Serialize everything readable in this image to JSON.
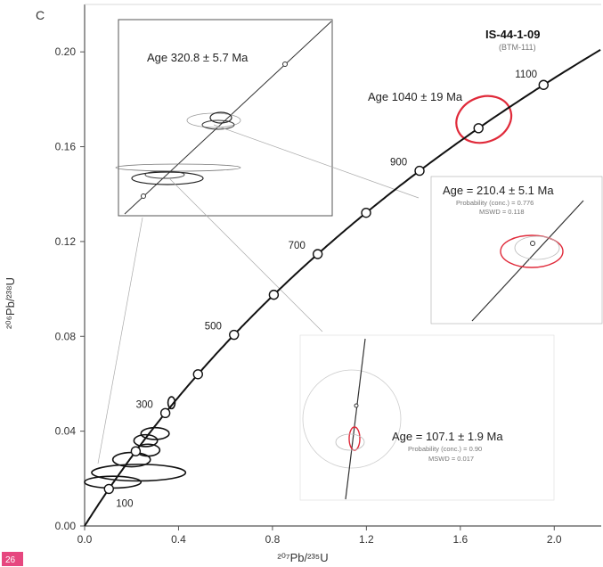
{
  "chart_data": {
    "type": "scatter",
    "panel_label": "C",
    "title": "IS-44-1-09",
    "subtitle": "(BTM-111)",
    "xlabel": "²⁰⁷Pb/²³⁵U",
    "ylabel": "²⁰⁶Pb/²³⁸U",
    "xlim": [
      0,
      2.2
    ],
    "ylim": [
      0,
      0.22
    ],
    "x_ticks": [
      0.0,
      0.4,
      0.8,
      1.2,
      1.6,
      2.0
    ],
    "x_tick_labels": [
      "0.0",
      "0.4",
      "0.8",
      "1.2",
      "1.6",
      "2.0"
    ],
    "y_ticks": [
      0.0,
      0.04,
      0.08,
      0.12,
      0.16,
      0.2
    ],
    "y_tick_labels": [
      "0.00",
      "0.04",
      "0.08",
      "0.12",
      "0.16",
      "0.20"
    ],
    "concordia_labels_ma": [
      100,
      300,
      500,
      700,
      900,
      1100
    ],
    "concordia_label_text": [
      "100",
      "300",
      "500",
      "700",
      "900",
      "1100"
    ],
    "concordia_markers_ma": [
      100,
      200,
      300,
      400,
      500,
      600,
      700,
      800,
      900,
      1000,
      1100
    ],
    "ellipses": [
      {
        "x": 0.12,
        "y": 0.0185,
        "rx": 0.12,
        "ry": 0.0025,
        "color": "black"
      },
      {
        "x": 0.23,
        "y": 0.0225,
        "rx": 0.2,
        "ry": 0.0035,
        "color": "black"
      },
      {
        "x": 0.2,
        "y": 0.028,
        "rx": 0.08,
        "ry": 0.003,
        "color": "black"
      },
      {
        "x": 0.27,
        "y": 0.032,
        "rx": 0.05,
        "ry": 0.0025,
        "color": "black"
      },
      {
        "x": 0.26,
        "y": 0.036,
        "rx": 0.05,
        "ry": 0.0025,
        "color": "black"
      },
      {
        "x": 0.3,
        "y": 0.039,
        "rx": 0.06,
        "ry": 0.0025,
        "color": "black"
      },
      {
        "x": 0.37,
        "y": 0.052,
        "rx": 0.015,
        "ry": 0.0025,
        "color": "black"
      },
      {
        "x": 1.7,
        "y": 0.1715,
        "rx": 0.12,
        "ry": 0.0095,
        "color": "red"
      }
    ],
    "annotations": [
      "Age 1040 ± 19 Ma",
      "Age 320.8 ± 5.7 Ma",
      "Age = 210.4 ± 5.1 Ma",
      "Age = 107.1 ± 1.9 Ma"
    ]
  },
  "insets": {
    "inset1": {
      "age_text": "Age 320.8 ± 5.7 Ma"
    },
    "inset2": {
      "age_text": "Age = 210.4 ± 5.1 Ma",
      "prob_text": "Probability (conc.) = 0.776",
      "mswd_text": "MSWD = 0.118"
    },
    "inset3": {
      "age_text": "Age = 107.1 ± 1.9 Ma",
      "prob_text": "Probability (conc.) = 0.90",
      "mswd_text": "MSWD = 0.017"
    }
  },
  "page_number": "26",
  "colors": {
    "concordia": "#111111",
    "red_ellipse": "#e02a3a",
    "page_badge": "#e6477f"
  }
}
